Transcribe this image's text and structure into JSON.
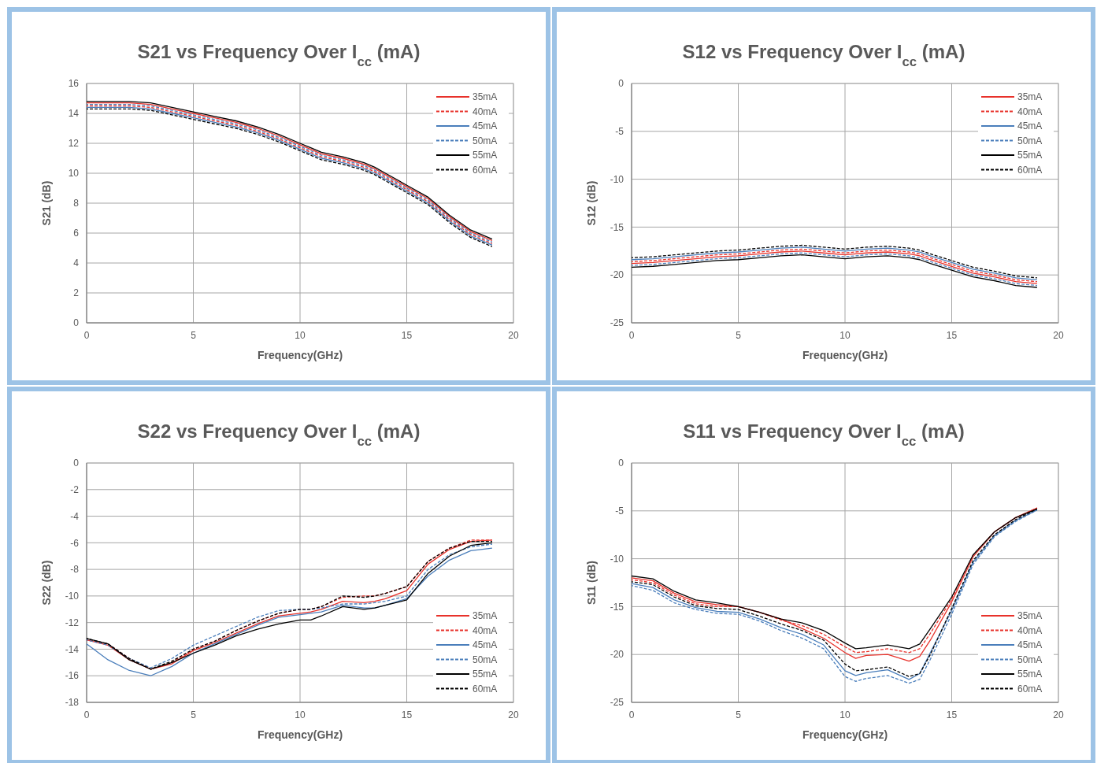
{
  "chart_data": [
    {
      "type": "line",
      "title": "S21 vs Frequency Over I$_{cc}$ (mA)",
      "xlabel": "Frequency(GHz)",
      "ylabel": "S21 (dB)",
      "x": [
        0,
        1,
        2,
        3,
        4,
        5,
        6,
        7,
        8,
        9,
        10,
        10.5,
        11,
        12,
        13,
        13.5,
        14,
        15,
        16,
        17,
        18,
        19
      ],
      "xlim": [
        0,
        20
      ],
      "xticks": [
        0,
        5,
        10,
        15,
        20
      ],
      "ylim": [
        0,
        16
      ],
      "yticks": [
        0,
        2,
        4,
        6,
        8,
        10,
        12,
        14,
        16
      ],
      "grid": true,
      "legend": "top right",
      "series": [
        {
          "name": "35mA",
          "color": "#e8322b",
          "line_style": "solid",
          "values": [
            14.7,
            14.7,
            14.7,
            14.6,
            14.3,
            14.0,
            13.7,
            13.4,
            13.0,
            12.5,
            11.9,
            11.6,
            11.3,
            11.0,
            10.6,
            10.3,
            9.9,
            9.1,
            8.3,
            7.1,
            6.1,
            5.5
          ]
        },
        {
          "name": "40mA",
          "color": "#e8322b",
          "line_style": "dashed",
          "values": [
            14.5,
            14.5,
            14.5,
            14.4,
            14.1,
            13.8,
            13.5,
            13.2,
            12.8,
            12.3,
            11.7,
            11.4,
            11.1,
            10.8,
            10.4,
            10.1,
            9.7,
            8.9,
            8.1,
            6.9,
            5.9,
            5.3
          ]
        },
        {
          "name": "45mA",
          "color": "#4a7ebb",
          "line_style": "solid",
          "values": [
            14.4,
            14.4,
            14.4,
            14.3,
            14.0,
            13.7,
            13.4,
            13.1,
            12.7,
            12.2,
            11.6,
            11.3,
            11.0,
            10.7,
            10.3,
            10.0,
            9.6,
            8.8,
            8.0,
            6.8,
            5.8,
            5.2
          ]
        },
        {
          "name": "50mA",
          "color": "#4a7ebb",
          "line_style": "dashed",
          "values": [
            14.6,
            14.6,
            14.6,
            14.5,
            14.2,
            13.9,
            13.6,
            13.3,
            12.9,
            12.4,
            11.8,
            11.5,
            11.2,
            10.9,
            10.5,
            10.2,
            9.8,
            9.0,
            8.2,
            7.0,
            6.0,
            5.4
          ]
        },
        {
          "name": "55mA",
          "color": "#000000",
          "line_style": "solid",
          "values": [
            14.8,
            14.8,
            14.8,
            14.7,
            14.4,
            14.1,
            13.8,
            13.5,
            13.1,
            12.6,
            12.0,
            11.7,
            11.4,
            11.1,
            10.7,
            10.4,
            10.0,
            9.2,
            8.4,
            7.2,
            6.2,
            5.6
          ]
        },
        {
          "name": "60mA",
          "color": "#000000",
          "line_style": "dashed",
          "values": [
            14.3,
            14.3,
            14.3,
            14.2,
            13.9,
            13.6,
            13.3,
            13.0,
            12.6,
            12.1,
            11.5,
            11.2,
            10.9,
            10.6,
            10.2,
            9.9,
            9.5,
            8.7,
            7.9,
            6.7,
            5.7,
            5.1
          ]
        }
      ]
    },
    {
      "type": "line",
      "title": "S12 vs Frequency Over I$_{cc}$ (mA)",
      "xlabel": "Frequency(GHz)",
      "ylabel": "S12 (dB)",
      "x": [
        0,
        1,
        2,
        3,
        4,
        5,
        6,
        7,
        8,
        9,
        10,
        10.5,
        11,
        12,
        13,
        13.5,
        14,
        15,
        16,
        17,
        18,
        19
      ],
      "xlim": [
        0,
        20
      ],
      "xticks": [
        0,
        5,
        10,
        15,
        20
      ],
      "ylim": [
        -25,
        0
      ],
      "yticks": [
        -25,
        -20,
        -15,
        -10,
        -5,
        0
      ],
      "grid": true,
      "legend": "top right",
      "series": [
        {
          "name": "35mA",
          "color": "#e8322b",
          "line_style": "solid",
          "values": [
            -18.8,
            -18.7,
            -18.5,
            -18.3,
            -18.1,
            -18.0,
            -17.8,
            -17.6,
            -17.5,
            -17.7,
            -17.9,
            -17.8,
            -17.7,
            -17.6,
            -17.8,
            -18.0,
            -18.4,
            -19.1,
            -19.8,
            -20.2,
            -20.7,
            -20.9
          ]
        },
        {
          "name": "40mA",
          "color": "#e8322b",
          "line_style": "dashed",
          "values": [
            -18.6,
            -18.5,
            -18.3,
            -18.1,
            -17.9,
            -17.8,
            -17.6,
            -17.4,
            -17.3,
            -17.5,
            -17.7,
            -17.6,
            -17.5,
            -17.4,
            -17.6,
            -17.8,
            -18.2,
            -18.9,
            -19.6,
            -20.0,
            -20.5,
            -20.7
          ]
        },
        {
          "name": "45mA",
          "color": "#4a7ebb",
          "line_style": "solid",
          "values": [
            -18.4,
            -18.3,
            -18.1,
            -17.9,
            -17.7,
            -17.6,
            -17.4,
            -17.2,
            -17.1,
            -17.3,
            -17.5,
            -17.4,
            -17.3,
            -17.2,
            -17.4,
            -17.6,
            -18.0,
            -18.7,
            -19.4,
            -19.8,
            -20.3,
            -20.5
          ]
        },
        {
          "name": "50mA",
          "color": "#4a7ebb",
          "line_style": "dashed",
          "values": [
            -19.0,
            -18.9,
            -18.7,
            -18.5,
            -18.3,
            -18.2,
            -18.0,
            -17.8,
            -17.7,
            -17.9,
            -18.1,
            -18.0,
            -17.9,
            -17.8,
            -18.0,
            -18.2,
            -18.6,
            -19.3,
            -20.0,
            -20.4,
            -20.9,
            -21.1
          ]
        },
        {
          "name": "55mA",
          "color": "#000000",
          "line_style": "solid",
          "values": [
            -19.2,
            -19.1,
            -18.9,
            -18.7,
            -18.5,
            -18.4,
            -18.2,
            -18.0,
            -17.9,
            -18.1,
            -18.3,
            -18.2,
            -18.1,
            -18.0,
            -18.2,
            -18.4,
            -18.8,
            -19.5,
            -20.2,
            -20.6,
            -21.1,
            -21.3
          ]
        },
        {
          "name": "60mA",
          "color": "#000000",
          "line_style": "dashed",
          "values": [
            -18.2,
            -18.1,
            -17.9,
            -17.7,
            -17.5,
            -17.4,
            -17.2,
            -17.0,
            -16.9,
            -17.1,
            -17.3,
            -17.2,
            -17.1,
            -17.0,
            -17.2,
            -17.4,
            -17.8,
            -18.5,
            -19.2,
            -19.6,
            -20.1,
            -20.3
          ]
        }
      ]
    },
    {
      "type": "line",
      "title": "S22 vs Frequency Over I$_{cc}$ (mA)",
      "xlabel": "Frequency(GHz)",
      "ylabel": "S22 (dB)",
      "x": [
        0,
        1,
        2,
        3,
        4,
        5,
        6,
        7,
        8,
        9,
        10,
        10.5,
        11,
        12,
        13,
        13.5,
        14,
        15,
        16,
        17,
        18,
        19
      ],
      "xlim": [
        0,
        20
      ],
      "xticks": [
        0,
        5,
        10,
        15,
        20
      ],
      "ylim": [
        -18,
        0
      ],
      "yticks": [
        -18,
        -16,
        -14,
        -12,
        -10,
        -8,
        -6,
        -4,
        -2,
        0
      ],
      "grid": true,
      "legend": "bottom right",
      "series": [
        {
          "name": "35mA",
          "color": "#e8322b",
          "line_style": "solid",
          "values": [
            -13.3,
            -13.7,
            -14.8,
            -15.5,
            -15.1,
            -14.1,
            -13.5,
            -12.8,
            -12.1,
            -11.5,
            -11.3,
            -11.2,
            -11.0,
            -10.4,
            -10.5,
            -10.4,
            -10.2,
            -9.6,
            -7.6,
            -6.5,
            -5.9,
            -5.8
          ]
        },
        {
          "name": "40mA",
          "color": "#e8322b",
          "line_style": "dashed",
          "values": [
            -13.3,
            -13.6,
            -14.7,
            -15.5,
            -15.0,
            -14.0,
            -13.4,
            -12.6,
            -11.9,
            -11.3,
            -11.0,
            -11.0,
            -10.8,
            -10.1,
            -10.0,
            -10.0,
            -9.8,
            -9.3,
            -7.4,
            -6.4,
            -5.8,
            -5.8
          ]
        },
        {
          "name": "45mA",
          "color": "#4a7ebb",
          "line_style": "solid",
          "values": [
            -13.6,
            -14.8,
            -15.6,
            -16.0,
            -15.3,
            -14.3,
            -13.6,
            -12.9,
            -12.2,
            -11.6,
            -11.4,
            -11.3,
            -11.2,
            -10.7,
            -10.9,
            -10.9,
            -10.7,
            -10.2,
            -8.5,
            -7.3,
            -6.6,
            -6.4
          ]
        },
        {
          "name": "50mA",
          "color": "#4a7ebb",
          "line_style": "dashed",
          "values": [
            -13.3,
            -13.7,
            -14.7,
            -15.4,
            -14.7,
            -13.7,
            -13.0,
            -12.3,
            -11.6,
            -11.1,
            -11.0,
            -11.0,
            -10.9,
            -10.6,
            -10.6,
            -10.5,
            -10.4,
            -10.0,
            -8.0,
            -6.9,
            -6.3,
            -6.1
          ]
        },
        {
          "name": "55mA",
          "color": "#000000",
          "line_style": "solid",
          "values": [
            -13.2,
            -13.6,
            -14.8,
            -15.5,
            -15.0,
            -14.3,
            -13.7,
            -13.0,
            -12.5,
            -12.1,
            -11.8,
            -11.8,
            -11.5,
            -10.8,
            -11.0,
            -10.9,
            -10.7,
            -10.3,
            -8.3,
            -7.0,
            -6.2,
            -6.0
          ]
        },
        {
          "name": "60mA",
          "color": "#000000",
          "line_style": "dashed",
          "values": [
            -13.2,
            -13.6,
            -14.7,
            -15.5,
            -14.9,
            -14.0,
            -13.4,
            -12.6,
            -11.9,
            -11.3,
            -11.0,
            -11.0,
            -10.8,
            -10.0,
            -10.1,
            -10.0,
            -9.8,
            -9.3,
            -7.4,
            -6.4,
            -5.9,
            -5.9
          ]
        }
      ]
    },
    {
      "type": "line",
      "title": "S11 vs Frequency Over I$_{cc}$ (mA)",
      "xlabel": "Frequency(GHz)",
      "ylabel": "S11 (dB)",
      "x": [
        0,
        1,
        2,
        3,
        4,
        5,
        6,
        7,
        8,
        9,
        10,
        10.5,
        11,
        12,
        13,
        13.5,
        14,
        15,
        16,
        17,
        18,
        19
      ],
      "xlim": [
        0,
        20
      ],
      "xticks": [
        0,
        5,
        10,
        15,
        20
      ],
      "ylim": [
        -25,
        0
      ],
      "yticks": [
        -25,
        -20,
        -15,
        -10,
        -5,
        0
      ],
      "grid": true,
      "legend": "bottom right",
      "series": [
        {
          "name": "35mA",
          "color": "#e8322b",
          "line_style": "solid",
          "values": [
            -12.0,
            -12.3,
            -13.6,
            -14.5,
            -14.8,
            -15.0,
            -15.6,
            -16.3,
            -17.3,
            -18.3,
            -19.8,
            -20.4,
            -20.1,
            -20.0,
            -20.7,
            -20.2,
            -18.5,
            -14.5,
            -9.8,
            -7.2,
            -5.7,
            -4.7
          ]
        },
        {
          "name": "40mA",
          "color": "#e8322b",
          "line_style": "dashed",
          "values": [
            -12.2,
            -12.5,
            -13.8,
            -14.7,
            -15.0,
            -15.0,
            -15.6,
            -16.4,
            -17.0,
            -17.9,
            -19.2,
            -19.8,
            -19.7,
            -19.4,
            -19.8,
            -19.4,
            -17.8,
            -14.2,
            -9.6,
            -7.2,
            -5.7,
            -4.7
          ]
        },
        {
          "name": "45mA",
          "color": "#4a7ebb",
          "line_style": "solid",
          "values": [
            -12.6,
            -13.0,
            -14.3,
            -15.1,
            -15.5,
            -15.6,
            -16.3,
            -17.2,
            -17.9,
            -19.0,
            -21.7,
            -22.2,
            -21.9,
            -21.6,
            -22.6,
            -22.0,
            -19.8,
            -15.4,
            -10.4,
            -7.6,
            -6.0,
            -4.9
          ]
        },
        {
          "name": "50mA",
          "color": "#4a7ebb",
          "line_style": "dashed",
          "values": [
            -12.8,
            -13.3,
            -14.6,
            -15.3,
            -15.7,
            -15.8,
            -16.5,
            -17.5,
            -18.3,
            -19.4,
            -22.3,
            -22.8,
            -22.5,
            -22.2,
            -23.0,
            -22.6,
            -20.5,
            -15.8,
            -10.6,
            -7.7,
            -6.1,
            -4.9
          ]
        },
        {
          "name": "55mA",
          "color": "#000000",
          "line_style": "solid",
          "values": [
            -11.8,
            -12.1,
            -13.4,
            -14.3,
            -14.6,
            -15.0,
            -15.6,
            -16.3,
            -16.7,
            -17.5,
            -18.8,
            -19.4,
            -19.3,
            -19.0,
            -19.4,
            -18.9,
            -17.3,
            -14.0,
            -9.6,
            -7.2,
            -5.7,
            -4.8
          ]
        },
        {
          "name": "60mA",
          "color": "#000000",
          "line_style": "dashed",
          "values": [
            -12.4,
            -12.7,
            -14.0,
            -14.9,
            -15.2,
            -15.3,
            -16.0,
            -16.8,
            -17.5,
            -18.5,
            -21.0,
            -21.7,
            -21.6,
            -21.3,
            -22.3,
            -22.0,
            -20.0,
            -15.2,
            -10.2,
            -7.5,
            -5.9,
            -4.8
          ]
        }
      ]
    }
  ]
}
